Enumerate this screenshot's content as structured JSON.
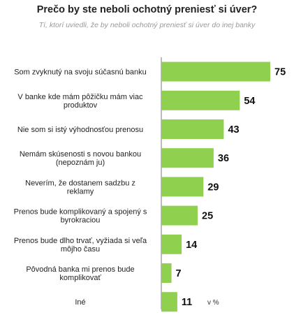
{
  "chart_data": {
    "type": "bar",
    "orientation": "horizontal",
    "title": "Prečo by ste neboli ochotný preniesť si úver?",
    "subtitle": "Tí, ktorí uviedli, že by neboli ochotný preniesť si úver do inej banky",
    "unit_label": "v %",
    "categories": [
      [
        "Som zvyknutý na svoju súčasnú banku"
      ],
      [
        "V banke kde mám pôžičku mám viac",
        "produktov"
      ],
      [
        "Nie som si istý výhodnosťou prenosu"
      ],
      [
        "Nemám skúsenosti s novou bankou",
        "(nepoznám ju)"
      ],
      [
        "Neverím, že dostanem sadzbu z",
        "reklamy"
      ],
      [
        "Prenos bude komplikovaný a spojený s",
        "byrokraciou"
      ],
      [
        "Prenos bude dlho trvať, vyžiada si veľa",
        "môjho času"
      ],
      [
        "Pôvodná banka mi prenos bude",
        "komplikovať"
      ],
      [
        "Iné"
      ]
    ],
    "values": [
      75,
      54,
      43,
      36,
      29,
      25,
      14,
      7,
      11
    ],
    "xlim": [
      0,
      75
    ],
    "grid": false,
    "legend": "none",
    "bar_color": "#8fd14f"
  }
}
